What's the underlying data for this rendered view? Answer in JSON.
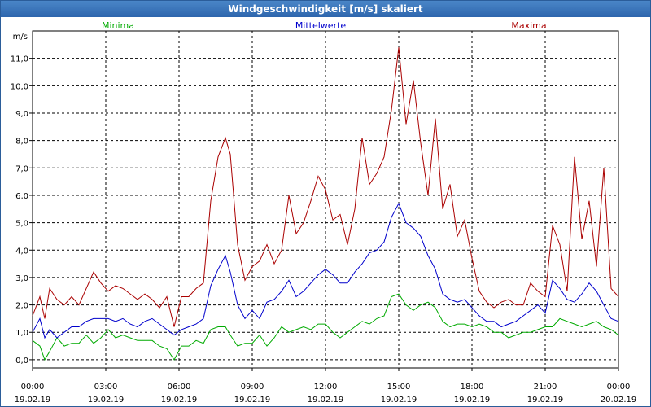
{
  "title": "Windgeschwindigkeit [m/s] skaliert",
  "chart_data": {
    "type": "line",
    "title": "Windgeschwindigkeit [m/s] skaliert",
    "ylabel": "m/s",
    "xlabel": "",
    "ylim": [
      -0.3,
      12.0
    ],
    "grid": true,
    "legend_placement": "top",
    "y_ticks": [
      "0,0",
      "1,0",
      "2,0",
      "3,0",
      "4,0",
      "5,0",
      "6,0",
      "7,0",
      "8,0",
      "9,0",
      "10,0",
      "11,0"
    ],
    "y_tick_values": [
      0,
      1,
      2,
      3,
      4,
      5,
      6,
      7,
      8,
      9,
      10,
      11
    ],
    "x_ticks": [
      {
        "time": "00:00",
        "date": "19.02.19",
        "hour": 0
      },
      {
        "time": "03:00",
        "date": "19.02.19",
        "hour": 3
      },
      {
        "time": "06:00",
        "date": "19.02.19",
        "hour": 6
      },
      {
        "time": "09:00",
        "date": "19.02.19",
        "hour": 9
      },
      {
        "time": "12:00",
        "date": "19.02.19",
        "hour": 12
      },
      {
        "time": "15:00",
        "date": "19.02.19",
        "hour": 15
      },
      {
        "time": "18:00",
        "date": "19.02.19",
        "hour": 18
      },
      {
        "time": "21:00",
        "date": "19.02.19",
        "hour": 21
      },
      {
        "time": "00:00",
        "date": "20.02.19",
        "hour": 24
      }
    ],
    "x_range_hours": [
      0,
      24
    ],
    "series": [
      {
        "name": "Minima",
        "color": "#00aa00",
        "values": [
          [
            0.0,
            0.7
          ],
          [
            0.3,
            0.5
          ],
          [
            0.5,
            0.0
          ],
          [
            0.7,
            0.3
          ],
          [
            1.0,
            0.8
          ],
          [
            1.3,
            0.5
          ],
          [
            1.6,
            0.6
          ],
          [
            1.9,
            0.6
          ],
          [
            2.2,
            0.9
          ],
          [
            2.5,
            0.6
          ],
          [
            2.8,
            0.8
          ],
          [
            3.1,
            1.1
          ],
          [
            3.4,
            0.8
          ],
          [
            3.7,
            0.9
          ],
          [
            4.0,
            0.8
          ],
          [
            4.3,
            0.7
          ],
          [
            4.6,
            0.7
          ],
          [
            4.9,
            0.7
          ],
          [
            5.2,
            0.5
          ],
          [
            5.5,
            0.4
          ],
          [
            5.8,
            0.0
          ],
          [
            6.1,
            0.5
          ],
          [
            6.4,
            0.5
          ],
          [
            6.7,
            0.7
          ],
          [
            7.0,
            0.6
          ],
          [
            7.3,
            1.1
          ],
          [
            7.6,
            1.2
          ],
          [
            7.9,
            1.2
          ],
          [
            8.1,
            0.9
          ],
          [
            8.4,
            0.5
          ],
          [
            8.7,
            0.6
          ],
          [
            9.0,
            0.6
          ],
          [
            9.3,
            0.9
          ],
          [
            9.6,
            0.5
          ],
          [
            9.9,
            0.8
          ],
          [
            10.2,
            1.2
          ],
          [
            10.5,
            1.0
          ],
          [
            10.8,
            1.1
          ],
          [
            11.1,
            1.2
          ],
          [
            11.4,
            1.1
          ],
          [
            11.7,
            1.3
          ],
          [
            12.0,
            1.3
          ],
          [
            12.3,
            1.0
          ],
          [
            12.6,
            0.8
          ],
          [
            12.9,
            1.0
          ],
          [
            13.2,
            1.2
          ],
          [
            13.5,
            1.4
          ],
          [
            13.8,
            1.3
          ],
          [
            14.1,
            1.5
          ],
          [
            14.4,
            1.6
          ],
          [
            14.7,
            2.3
          ],
          [
            15.0,
            2.4
          ],
          [
            15.3,
            2.0
          ],
          [
            15.6,
            1.8
          ],
          [
            15.9,
            2.0
          ],
          [
            16.2,
            2.1
          ],
          [
            16.5,
            1.9
          ],
          [
            16.8,
            1.4
          ],
          [
            17.1,
            1.2
          ],
          [
            17.4,
            1.3
          ],
          [
            17.7,
            1.3
          ],
          [
            18.0,
            1.2
          ],
          [
            18.3,
            1.3
          ],
          [
            18.6,
            1.2
          ],
          [
            18.9,
            1.0
          ],
          [
            19.2,
            1.0
          ],
          [
            19.5,
            0.8
          ],
          [
            19.8,
            0.9
          ],
          [
            20.1,
            1.0
          ],
          [
            20.4,
            1.0
          ],
          [
            20.7,
            1.1
          ],
          [
            21.0,
            1.2
          ],
          [
            21.3,
            1.2
          ],
          [
            21.6,
            1.5
          ],
          [
            21.9,
            1.4
          ],
          [
            22.2,
            1.3
          ],
          [
            22.5,
            1.2
          ],
          [
            22.8,
            1.3
          ],
          [
            23.1,
            1.4
          ],
          [
            23.4,
            1.2
          ],
          [
            23.7,
            1.1
          ],
          [
            24.0,
            0.9
          ]
        ]
      },
      {
        "name": "Mittelwerte",
        "color": "#0000cc",
        "values": [
          [
            0.0,
            1.0
          ],
          [
            0.3,
            1.5
          ],
          [
            0.5,
            0.8
          ],
          [
            0.7,
            1.1
          ],
          [
            1.0,
            0.8
          ],
          [
            1.3,
            1.0
          ],
          [
            1.6,
            1.2
          ],
          [
            1.9,
            1.2
          ],
          [
            2.2,
            1.4
          ],
          [
            2.5,
            1.5
          ],
          [
            2.8,
            1.5
          ],
          [
            3.1,
            1.5
          ],
          [
            3.4,
            1.4
          ],
          [
            3.7,
            1.5
          ],
          [
            4.0,
            1.3
          ],
          [
            4.3,
            1.2
          ],
          [
            4.6,
            1.4
          ],
          [
            4.9,
            1.5
          ],
          [
            5.2,
            1.3
          ],
          [
            5.5,
            1.1
          ],
          [
            5.8,
            0.9
          ],
          [
            6.1,
            1.1
          ],
          [
            6.4,
            1.2
          ],
          [
            6.7,
            1.3
          ],
          [
            7.0,
            1.5
          ],
          [
            7.3,
            2.7
          ],
          [
            7.6,
            3.3
          ],
          [
            7.9,
            3.8
          ],
          [
            8.1,
            3.2
          ],
          [
            8.4,
            2.0
          ],
          [
            8.7,
            1.5
          ],
          [
            9.0,
            1.8
          ],
          [
            9.3,
            1.5
          ],
          [
            9.6,
            2.1
          ],
          [
            9.9,
            2.2
          ],
          [
            10.2,
            2.5
          ],
          [
            10.5,
            2.9
          ],
          [
            10.8,
            2.3
          ],
          [
            11.1,
            2.5
          ],
          [
            11.4,
            2.8
          ],
          [
            11.7,
            3.1
          ],
          [
            12.0,
            3.3
          ],
          [
            12.3,
            3.1
          ],
          [
            12.6,
            2.8
          ],
          [
            12.9,
            2.8
          ],
          [
            13.2,
            3.2
          ],
          [
            13.5,
            3.5
          ],
          [
            13.8,
            3.9
          ],
          [
            14.1,
            4.0
          ],
          [
            14.4,
            4.3
          ],
          [
            14.7,
            5.2
          ],
          [
            15.0,
            5.7
          ],
          [
            15.3,
            5.0
          ],
          [
            15.6,
            4.8
          ],
          [
            15.9,
            4.5
          ],
          [
            16.2,
            3.8
          ],
          [
            16.5,
            3.3
          ],
          [
            16.8,
            2.4
          ],
          [
            17.1,
            2.2
          ],
          [
            17.4,
            2.1
          ],
          [
            17.7,
            2.2
          ],
          [
            18.0,
            1.9
          ],
          [
            18.3,
            1.6
          ],
          [
            18.6,
            1.4
          ],
          [
            18.9,
            1.4
          ],
          [
            19.2,
            1.2
          ],
          [
            19.5,
            1.3
          ],
          [
            19.8,
            1.4
          ],
          [
            20.1,
            1.6
          ],
          [
            20.4,
            1.8
          ],
          [
            20.7,
            2.0
          ],
          [
            21.0,
            1.7
          ],
          [
            21.3,
            2.9
          ],
          [
            21.6,
            2.6
          ],
          [
            21.9,
            2.2
          ],
          [
            22.2,
            2.1
          ],
          [
            22.5,
            2.4
          ],
          [
            22.8,
            2.8
          ],
          [
            23.1,
            2.5
          ],
          [
            23.4,
            2.0
          ],
          [
            23.7,
            1.5
          ],
          [
            24.0,
            1.4
          ]
        ]
      },
      {
        "name": "Maxima",
        "color": "#aa0000",
        "values": [
          [
            0.0,
            1.6
          ],
          [
            0.3,
            2.3
          ],
          [
            0.5,
            1.5
          ],
          [
            0.7,
            2.6
          ],
          [
            1.0,
            2.2
          ],
          [
            1.3,
            2.0
          ],
          [
            1.6,
            2.3
          ],
          [
            1.9,
            2.0
          ],
          [
            2.2,
            2.6
          ],
          [
            2.5,
            3.2
          ],
          [
            2.8,
            2.8
          ],
          [
            3.1,
            2.5
          ],
          [
            3.4,
            2.7
          ],
          [
            3.7,
            2.6
          ],
          [
            4.0,
            2.4
          ],
          [
            4.3,
            2.2
          ],
          [
            4.6,
            2.4
          ],
          [
            4.9,
            2.2
          ],
          [
            5.2,
            1.9
          ],
          [
            5.5,
            2.3
          ],
          [
            5.8,
            1.2
          ],
          [
            6.1,
            2.3
          ],
          [
            6.4,
            2.3
          ],
          [
            6.7,
            2.6
          ],
          [
            7.0,
            2.8
          ],
          [
            7.3,
            5.8
          ],
          [
            7.6,
            7.4
          ],
          [
            7.9,
            8.1
          ],
          [
            8.1,
            7.5
          ],
          [
            8.4,
            4.2
          ],
          [
            8.7,
            2.9
          ],
          [
            9.0,
            3.4
          ],
          [
            9.3,
            3.6
          ],
          [
            9.6,
            4.2
          ],
          [
            9.9,
            3.5
          ],
          [
            10.2,
            4.0
          ],
          [
            10.5,
            6.0
          ],
          [
            10.8,
            4.6
          ],
          [
            11.1,
            5.0
          ],
          [
            11.4,
            5.8
          ],
          [
            11.7,
            6.7
          ],
          [
            12.0,
            6.2
          ],
          [
            12.3,
            5.1
          ],
          [
            12.6,
            5.3
          ],
          [
            12.9,
            4.2
          ],
          [
            13.2,
            5.5
          ],
          [
            13.5,
            8.1
          ],
          [
            13.8,
            6.4
          ],
          [
            14.1,
            6.8
          ],
          [
            14.4,
            7.4
          ],
          [
            14.7,
            9.1
          ],
          [
            15.0,
            11.4
          ],
          [
            15.3,
            8.6
          ],
          [
            15.6,
            10.2
          ],
          [
            15.9,
            7.9
          ],
          [
            16.2,
            6.0
          ],
          [
            16.5,
            8.8
          ],
          [
            16.8,
            5.5
          ],
          [
            17.1,
            6.4
          ],
          [
            17.4,
            4.5
          ],
          [
            17.7,
            5.1
          ],
          [
            18.0,
            3.7
          ],
          [
            18.3,
            2.5
          ],
          [
            18.6,
            2.1
          ],
          [
            18.9,
            1.9
          ],
          [
            19.2,
            2.1
          ],
          [
            19.5,
            2.2
          ],
          [
            19.8,
            2.0
          ],
          [
            20.1,
            2.0
          ],
          [
            20.4,
            2.8
          ],
          [
            20.7,
            2.5
          ],
          [
            21.0,
            2.3
          ],
          [
            21.3,
            4.9
          ],
          [
            21.6,
            4.2
          ],
          [
            21.9,
            2.5
          ],
          [
            22.2,
            7.4
          ],
          [
            22.5,
            4.4
          ],
          [
            22.8,
            5.8
          ],
          [
            23.1,
            3.4
          ],
          [
            23.4,
            7.0
          ],
          [
            23.7,
            2.6
          ],
          [
            24.0,
            2.3
          ]
        ]
      }
    ]
  }
}
